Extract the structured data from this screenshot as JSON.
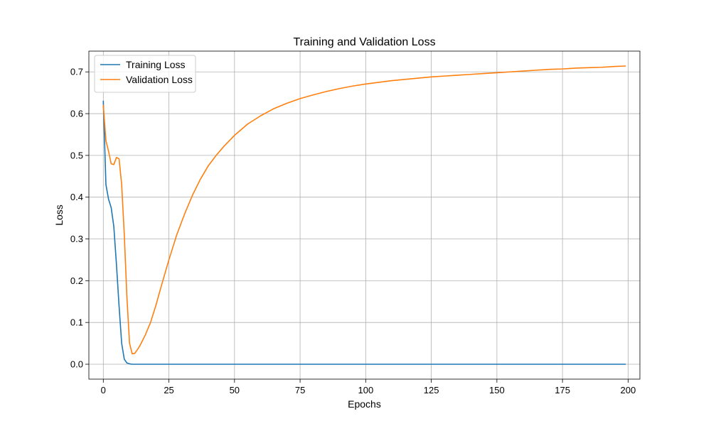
{
  "chart_data": {
    "type": "line",
    "title": "Training and Validation Loss",
    "xlabel": "Epochs",
    "ylabel": "Loss",
    "xlim": [
      -5.5,
      204.5
    ],
    "ylim": [
      -0.0357,
      0.7497
    ],
    "xticks": [
      0,
      25,
      50,
      75,
      100,
      125,
      150,
      175,
      200
    ],
    "yticks": [
      0.0,
      0.1,
      0.2,
      0.3,
      0.4,
      0.5,
      0.6,
      0.7
    ],
    "grid": true,
    "legend_position": "top-left",
    "series": [
      {
        "name": "Training Loss",
        "color": "#1f77b4",
        "x": [
          0,
          1,
          2,
          3,
          4,
          5,
          6,
          7,
          8,
          9,
          10,
          11,
          12,
          15,
          20,
          30,
          50,
          75,
          100,
          125,
          150,
          175,
          199
        ],
        "y": [
          0.63,
          0.43,
          0.395,
          0.375,
          0.33,
          0.24,
          0.14,
          0.05,
          0.012,
          0.003,
          0.001,
          0.0,
          0.0,
          0.0,
          0.0,
          0.0,
          0.0,
          0.0,
          0.0,
          0.0,
          0.0,
          0.0,
          0.0
        ]
      },
      {
        "name": "Validation Loss",
        "color": "#ff7f0e",
        "x": [
          0,
          1,
          2,
          3,
          4,
          5,
          6,
          7,
          8,
          9,
          10,
          11,
          12,
          13,
          14,
          16,
          18,
          20,
          22,
          25,
          28,
          31,
          34,
          37,
          40,
          43,
          46,
          50,
          55,
          60,
          65,
          70,
          75,
          80,
          85,
          90,
          95,
          100,
          105,
          110,
          115,
          120,
          125,
          130,
          135,
          140,
          145,
          150,
          155,
          160,
          165,
          170,
          175,
          180,
          185,
          190,
          195,
          199
        ],
        "y": [
          0.62,
          0.535,
          0.51,
          0.48,
          0.478,
          0.495,
          0.492,
          0.43,
          0.31,
          0.16,
          0.05,
          0.025,
          0.026,
          0.035,
          0.045,
          0.07,
          0.1,
          0.14,
          0.185,
          0.25,
          0.31,
          0.36,
          0.405,
          0.443,
          0.475,
          0.5,
          0.522,
          0.548,
          0.575,
          0.595,
          0.612,
          0.625,
          0.636,
          0.645,
          0.653,
          0.66,
          0.666,
          0.671,
          0.675,
          0.679,
          0.682,
          0.685,
          0.688,
          0.69,
          0.692,
          0.694,
          0.696,
          0.698,
          0.7,
          0.702,
          0.704,
          0.706,
          0.707,
          0.709,
          0.71,
          0.711,
          0.713,
          0.714
        ]
      }
    ]
  }
}
